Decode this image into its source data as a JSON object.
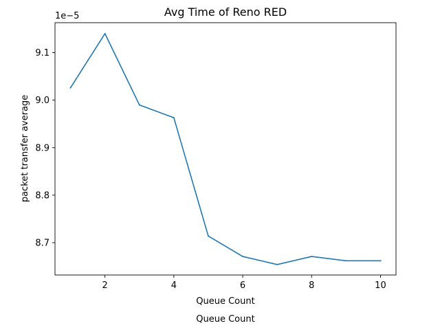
{
  "chart_data": {
    "type": "line",
    "title": "Avg Time of Reno RED",
    "xlabel": "Queue Count",
    "xlabel_secondary": "Queue Count",
    "ylabel": "packet transfer average",
    "y_offset_label": "1e−5",
    "x": [
      1,
      2,
      3,
      4,
      5,
      6,
      7,
      8,
      9,
      10
    ],
    "series": [
      {
        "values": [
          9.026,
          9.14,
          8.99,
          8.963,
          8.714,
          8.671,
          8.654,
          8.671,
          8.662,
          8.662
        ],
        "color": "#1f77b4"
      }
    ],
    "xlim": [
      0.55,
      10.45
    ],
    "ylim": [
      8.632,
      9.163
    ],
    "x_ticks": [
      2,
      4,
      6,
      8,
      10
    ],
    "y_ticks": [
      8.7,
      8.8,
      8.9,
      9.0,
      9.1
    ],
    "y_tick_labels": [
      "8.7",
      "8.8",
      "8.9",
      "9.0",
      "9.1"
    ],
    "grid": false,
    "legend": "none"
  }
}
